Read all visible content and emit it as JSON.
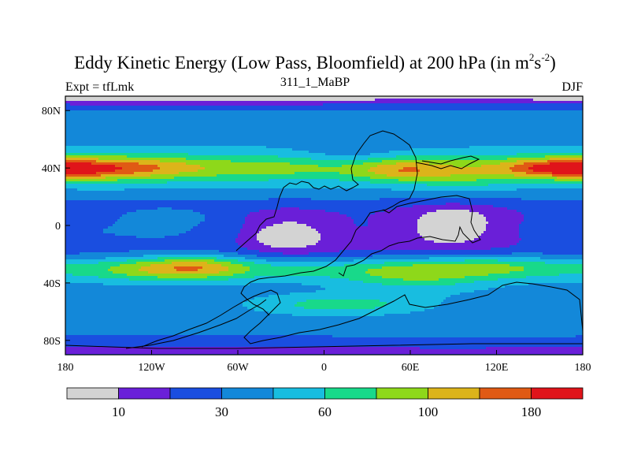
{
  "header": {
    "title_prefix": "Eddy Kinetic Energy (Low Pass, Bloomfield) at 200 hPa (in m",
    "title_sup1": "2",
    "title_mid": "s",
    "title_sup2": "-2",
    "title_suffix": ")",
    "experiment": "Expt = tfLmk",
    "run_id": "311_1_MaBP",
    "season": "DJF"
  },
  "chart_data": {
    "type": "heatmap",
    "title": "Eddy Kinetic Energy (Low Pass, Bloomfield) at 200 hPa (in m^2 s^-2)",
    "subtitle": "311_1_MaBP",
    "experiment": "Expt = tfLmk",
    "season": "DJF",
    "xlim": [
      -180,
      180
    ],
    "ylim": [
      -90,
      90
    ],
    "x_ticks": [
      {
        "value": -180,
        "label": "180"
      },
      {
        "value": -120,
        "label": "120W"
      },
      {
        "value": -60,
        "label": "60W"
      },
      {
        "value": 0,
        "label": "0"
      },
      {
        "value": 60,
        "label": "60E"
      },
      {
        "value": 120,
        "label": "120E"
      },
      {
        "value": 180,
        "label": "180"
      }
    ],
    "y_ticks": [
      {
        "value": 80,
        "label": "80N"
      },
      {
        "value": 40,
        "label": "40N"
      },
      {
        "value": 0,
        "label": "0"
      },
      {
        "value": -40,
        "label": "40S"
      },
      {
        "value": -80,
        "label": "80S"
      }
    ],
    "colorbar": {
      "colors": [
        "#d3d3d3",
        "#6a1fd8",
        "#1a4ee0",
        "#1388d9",
        "#18bde0",
        "#18d98a",
        "#8ed81a",
        "#dcb41a",
        "#e05a14",
        "#e0141a"
      ],
      "labels": [
        {
          "after_box": 1,
          "text": "10"
        },
        {
          "after_box": 3,
          "text": "30"
        },
        {
          "after_box": 5,
          "text": "60"
        },
        {
          "after_box": 7,
          "text": "100"
        },
        {
          "after_box": 9,
          "text": "180"
        }
      ]
    },
    "field": {
      "base_level": 3,
      "note": "base_level = sky-blue band; features add contour levels (0 = grey ... 9 = red)",
      "features": [
        {
          "lon": -90,
          "lat": 90,
          "sx": 360,
          "sy": 5,
          "d": -3
        },
        {
          "lon": -90,
          "lat": -84,
          "sx": 360,
          "sy": 6,
          "d": -1
        },
        {
          "lon": -90,
          "lat": -88,
          "sx": 360,
          "sy": 3,
          "d": -1
        },
        {
          "lon": -90,
          "lat": 40,
          "sx": 360,
          "sy": 9,
          "d": 2
        },
        {
          "lon": -90,
          "lat": 40,
          "sx": 360,
          "sy": 5,
          "d": 1
        },
        {
          "lon": -140,
          "lat": 40,
          "sx": 34,
          "sy": 6,
          "d": 2
        },
        {
          "lon": -170,
          "lat": 38,
          "sx": 20,
          "sy": 5,
          "d": 1
        },
        {
          "lon": 160,
          "lat": 40,
          "sx": 26,
          "sy": 5,
          "d": 3
        },
        {
          "lon": 55,
          "lat": 38,
          "sx": 24,
          "sy": 6,
          "d": 2
        },
        {
          "lon": 100,
          "lat": 32,
          "sx": 22,
          "sy": 6,
          "d": 1
        },
        {
          "lon": 20,
          "lat": 50,
          "sx": 25,
          "sy": 10,
          "d": -1
        },
        {
          "lon": 10,
          "lat": -20,
          "sx": 360,
          "sy": 8,
          "d": -1
        },
        {
          "lon": 60,
          "lat": -8,
          "sx": 90,
          "sy": 10,
          "d": -1
        },
        {
          "lon": -120,
          "lat": -30,
          "sx": 38,
          "sy": 6,
          "d": 3
        },
        {
          "lon": -85,
          "lat": -28,
          "sx": 25,
          "sy": 6,
          "d": 2
        },
        {
          "lon": -10,
          "lat": -30,
          "sx": 70,
          "sy": 6,
          "d": 2
        },
        {
          "lon": 115,
          "lat": -28,
          "sx": 40,
          "sy": 6,
          "d": 2
        },
        {
          "lon": 150,
          "lat": -30,
          "sx": 40,
          "sy": 6,
          "d": 1
        },
        {
          "lon": 65,
          "lat": -35,
          "sx": 35,
          "sy": 8,
          "d": 2
        },
        {
          "lon": 10,
          "lat": -55,
          "sx": 40,
          "sy": 5,
          "d": 2
        },
        {
          "lon": -90,
          "lat": 10,
          "sx": 360,
          "sy": 7,
          "d": -1
        },
        {
          "lon": -110,
          "lat": 7,
          "sx": 25,
          "sy": 4,
          "d": 1
        },
        {
          "lon": -25,
          "lat": -5,
          "sx": 25,
          "sy": 10,
          "d": -2
        },
        {
          "lon": 90,
          "lat": 0,
          "sx": 30,
          "sy": 11,
          "d": -2
        },
        {
          "lon": -30,
          "lat": -8,
          "sx": 12,
          "sy": 4,
          "d": -1
        },
        {
          "lon": 90,
          "lat": 5,
          "sx": 10,
          "sy": 4,
          "d": -1
        }
      ]
    }
  }
}
